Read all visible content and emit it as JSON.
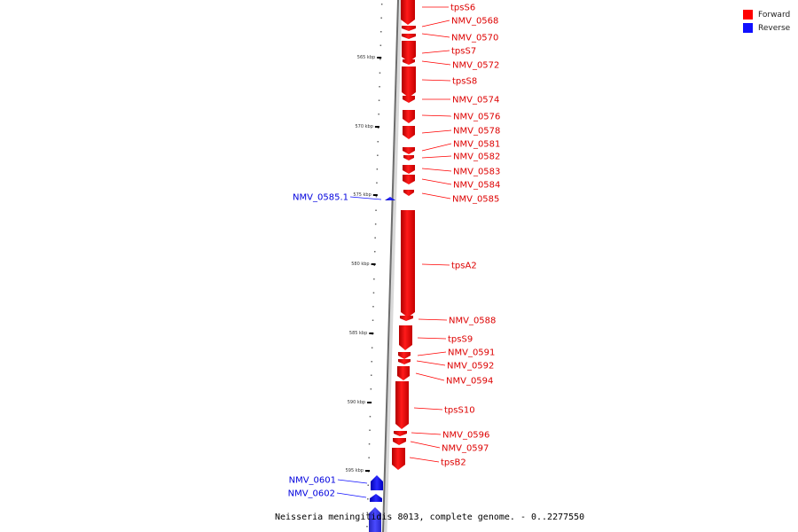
{
  "legend": {
    "forward": {
      "label": "Forward",
      "color": "#ff0000"
    },
    "reverse": {
      "label": "Reverse",
      "color": "#1010ff"
    }
  },
  "caption": "Neisseria meningitidis 8013, complete genome. - 0..2277550",
  "ticks": [
    "565 kbp",
    "570 kbp",
    "575 kbp",
    "580 kbp",
    "585 kbp",
    "590 kbp",
    "595 kbp"
  ],
  "forward_labels": [
    "tpsS6",
    "NMV_0568",
    "NMV_0570",
    "tpsS7",
    "NMV_0572",
    "tpsS8",
    "NMV_0574",
    "NMV_0576",
    "NMV_0578",
    "NMV_0581",
    "NMV_0582",
    "NMV_0583",
    "NMV_0584",
    "NMV_0585",
    "tpsA2",
    "NMV_0588",
    "tpsS9",
    "NMV_0591",
    "NMV_0592",
    "NMV_0594",
    "tpsS10",
    "NMV_0596",
    "NMV_0597",
    "tpsB2"
  ],
  "reverse_labels": [
    "NMV_0585.1",
    "NMV_0601",
    "NMV_0602"
  ]
}
